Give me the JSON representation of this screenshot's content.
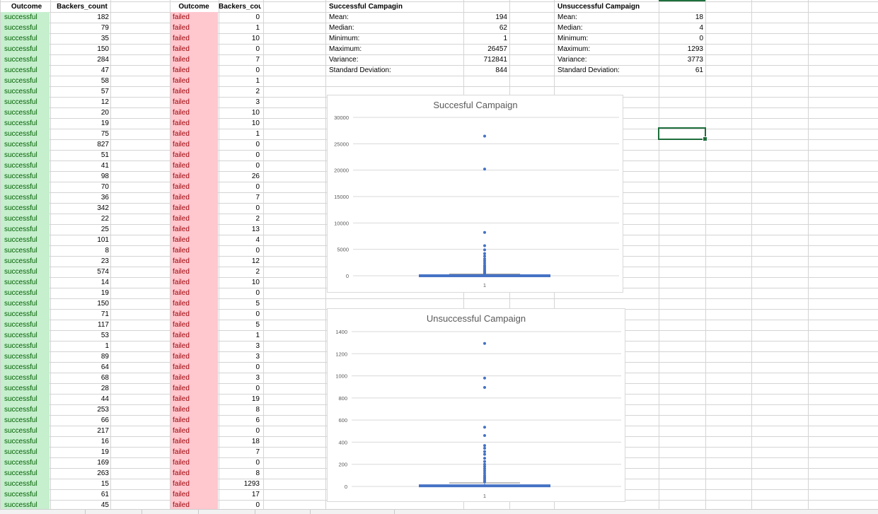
{
  "table_success": {
    "headers": [
      "Outcome",
      "Backers_count"
    ],
    "outcome": "successful",
    "backers": [
      182,
      79,
      35,
      150,
      284,
      47,
      58,
      57,
      12,
      20,
      19,
      75,
      827,
      51,
      41,
      98,
      70,
      36,
      342,
      22,
      25,
      101,
      8,
      23,
      574,
      14,
      19,
      150,
      71,
      117,
      53,
      1,
      89,
      64,
      68,
      28,
      44,
      253,
      66,
      217,
      16,
      19,
      169,
      263,
      15,
      61,
      45
    ]
  },
  "table_failed": {
    "headers": [
      "Outcome",
      "Backers_count"
    ],
    "outcome": "failed",
    "backers": [
      0,
      1,
      10,
      0,
      7,
      0,
      1,
      2,
      3,
      10,
      10,
      1,
      0,
      0,
      0,
      26,
      0,
      7,
      0,
      2,
      13,
      4,
      0,
      12,
      2,
      10,
      0,
      5,
      0,
      5,
      1,
      3,
      3,
      0,
      3,
      0,
      19,
      8,
      6,
      0,
      18,
      7,
      0,
      8,
      1293,
      17,
      0
    ]
  },
  "stats_success": {
    "title": "Successful Campagin",
    "rows": [
      {
        "label": "Mean:",
        "value": "194"
      },
      {
        "label": "Median:",
        "value": "62"
      },
      {
        "label": "Minimum:",
        "value": "1"
      },
      {
        "label": "Maximum:",
        "value": "26457"
      },
      {
        "label": "Variance:",
        "value": "712841"
      },
      {
        "label": "Standard Deviation:",
        "value": "844"
      }
    ]
  },
  "stats_fail": {
    "title": "Unsuccessful Campaign",
    "rows": [
      {
        "label": "Mean:",
        "value": "18"
      },
      {
        "label": "Median:",
        "value": "4"
      },
      {
        "label": "Minimum:",
        "value": "0"
      },
      {
        "label": "Maximum:",
        "value": "1293"
      },
      {
        "label": "Variance:",
        "value": "3773"
      },
      {
        "label": "Standard Deviation:",
        "value": "61"
      }
    ]
  },
  "colors": {
    "success_fill": "#c6efce",
    "success_text": "#006100",
    "fail_fill": "#ffc7ce",
    "fail_text": "#9c0006",
    "gridline": "#d4d4d4",
    "series": "#4472c4",
    "selection": "#1e6e3c"
  },
  "chart_data": [
    {
      "type": "box",
      "title": "Succesful Campaign",
      "xlabel": "",
      "ylabel": "",
      "categories": [
        "1"
      ],
      "ylim": [
        0,
        30000
      ],
      "yticks": [
        0,
        5000,
        10000,
        15000,
        20000,
        25000,
        30000
      ],
      "grid": true,
      "box": {
        "q1": 30,
        "median": 62,
        "q3": 130,
        "whisker_low": 1,
        "whisker_high": 300
      },
      "outliers": [
        26457,
        20200,
        8200,
        5700,
        4900,
        4200,
        3700,
        3200,
        2800,
        2400,
        2000,
        1700,
        1400,
        1100,
        900,
        700,
        550,
        420
      ]
    },
    {
      "type": "box",
      "title": "Unsuccessful Campaign",
      "xlabel": "",
      "ylabel": "",
      "categories": [
        "1"
      ],
      "ylim": [
        0,
        1400
      ],
      "yticks": [
        0,
        200,
        400,
        600,
        800,
        1000,
        1200,
        1400
      ],
      "grid": true,
      "box": {
        "q1": 2,
        "median": 4,
        "q3": 12,
        "whisker_low": 0,
        "whisker_high": 32
      },
      "outliers": [
        1293,
        980,
        895,
        535,
        460,
        370,
        345,
        315,
        290,
        255,
        225,
        200,
        180,
        160,
        140,
        120,
        100,
        85,
        70,
        55,
        42
      ]
    }
  ]
}
